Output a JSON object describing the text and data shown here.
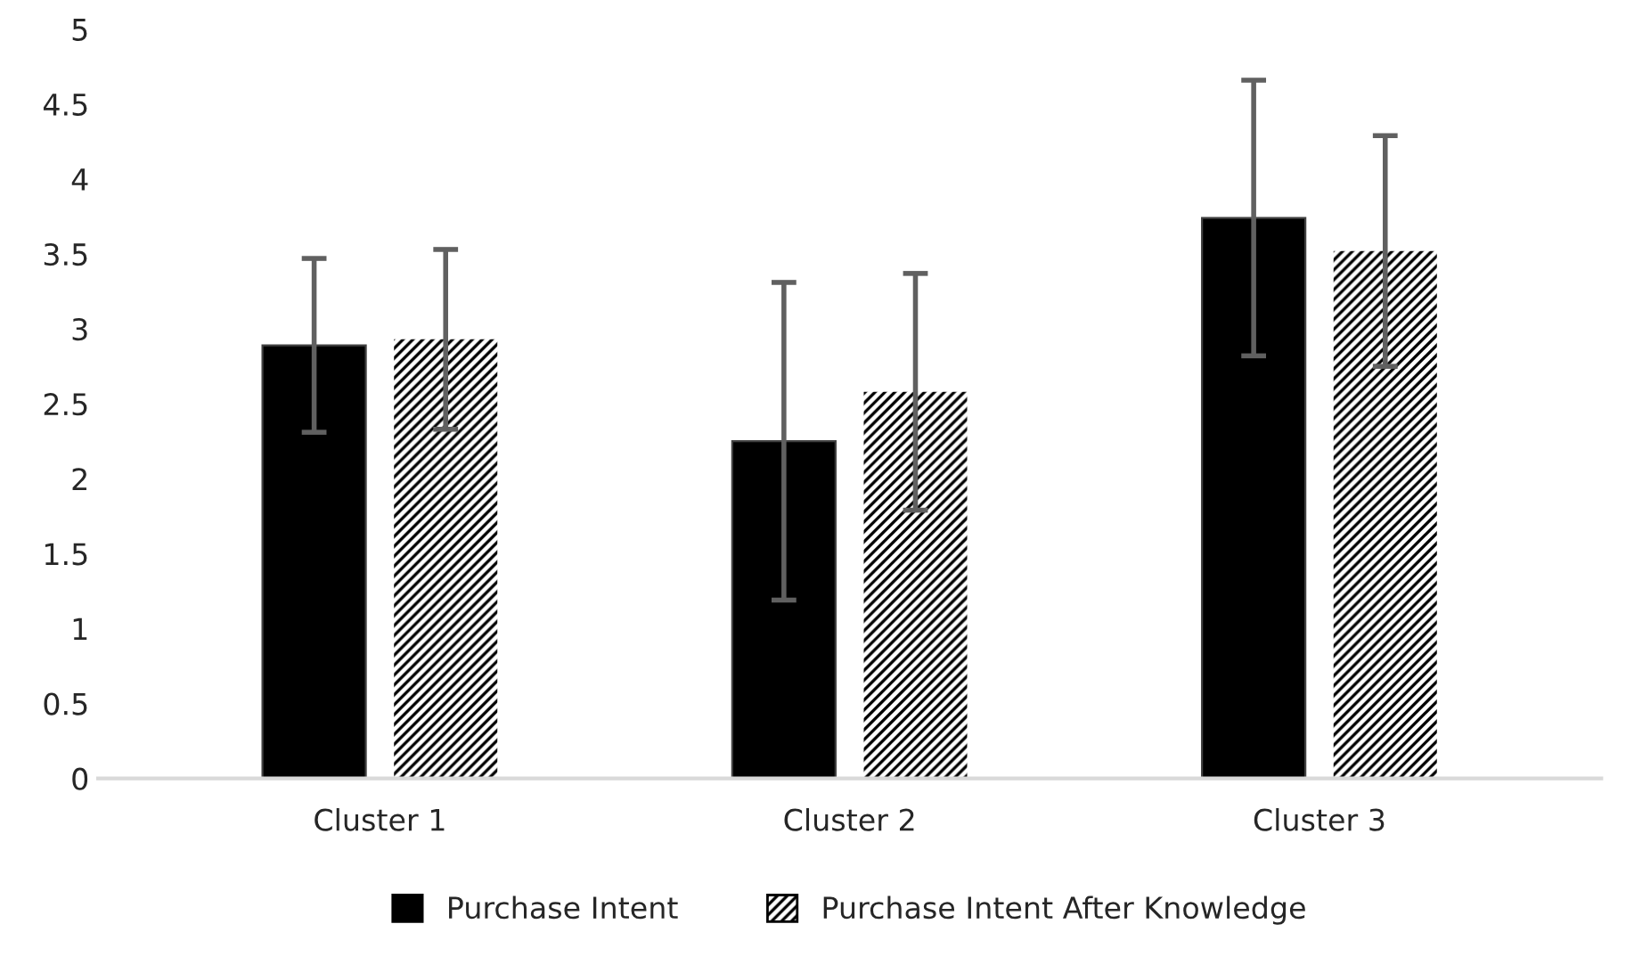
{
  "chart_data": {
    "type": "bar",
    "categories": [
      "Cluster 1",
      "Cluster 2",
      "Cluster 3"
    ],
    "series": [
      {
        "name": "Purchase Intent",
        "color": "#000000",
        "values": [
          2.89,
          2.25,
          3.74
        ],
        "errors": [
          0.58,
          1.06,
          0.92
        ]
      },
      {
        "name": "Purchase Intent After Knowledge",
        "color": "#000000",
        "values": [
          2.93,
          2.58,
          3.52
        ],
        "errors": [
          0.6,
          0.79,
          0.77
        ]
      }
    ],
    "ylim": [
      0,
      5
    ],
    "yticks": [
      0,
      0.5,
      1,
      1.5,
      2,
      2.5,
      3,
      3.5,
      4,
      4.5,
      5
    ],
    "grid": false,
    "legend": "bottom"
  }
}
